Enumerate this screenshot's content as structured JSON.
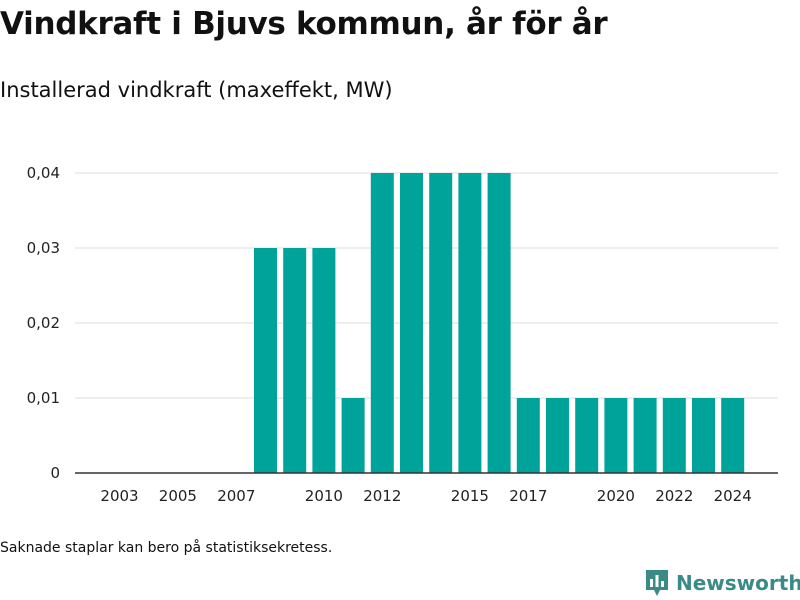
{
  "title": "Vindkraft i Bjuvs kommun, år för år",
  "subtitle": "Installerad vindkraft (maxeffekt, MW)",
  "footnote": "Saknade staplar kan bero på statistiksekretess.",
  "brand": {
    "name": "Newsworthy",
    "icon": "newsworthy-logo-icon"
  },
  "colors": {
    "bar": "#00a39a",
    "grid": "#dddddd",
    "axis": "#333333",
    "brand": "#3a8a86"
  },
  "chart_data": {
    "type": "bar",
    "categories": [
      "2003",
      "2004",
      "2005",
      "2006",
      "2007",
      "2008",
      "2009",
      "2010",
      "2011",
      "2012",
      "2013",
      "2014",
      "2015",
      "2016",
      "2017",
      "2018",
      "2019",
      "2020",
      "2021",
      "2022",
      "2023",
      "2024"
    ],
    "values": [
      0,
      0,
      0,
      0,
      0,
      0.03,
      0.03,
      0.03,
      0.01,
      0.04,
      0.04,
      0.04,
      0.04,
      0.04,
      0.01,
      0.01,
      0.01,
      0.01,
      0.01,
      0.01,
      0.01,
      0.01
    ],
    "x_tick_labels": [
      "2003",
      "2005",
      "2007",
      "2010",
      "2012",
      "2015",
      "2017",
      "2020",
      "2022",
      "2024"
    ],
    "y_ticks": [
      0,
      0.01,
      0.02,
      0.03,
      0.04
    ],
    "y_tick_labels": [
      "0",
      "0,01",
      "0,02",
      "0,03",
      "0,04"
    ],
    "ylim": [
      0,
      0.04
    ],
    "xlabel": "",
    "ylabel": "",
    "grid": true,
    "legend": "none"
  }
}
